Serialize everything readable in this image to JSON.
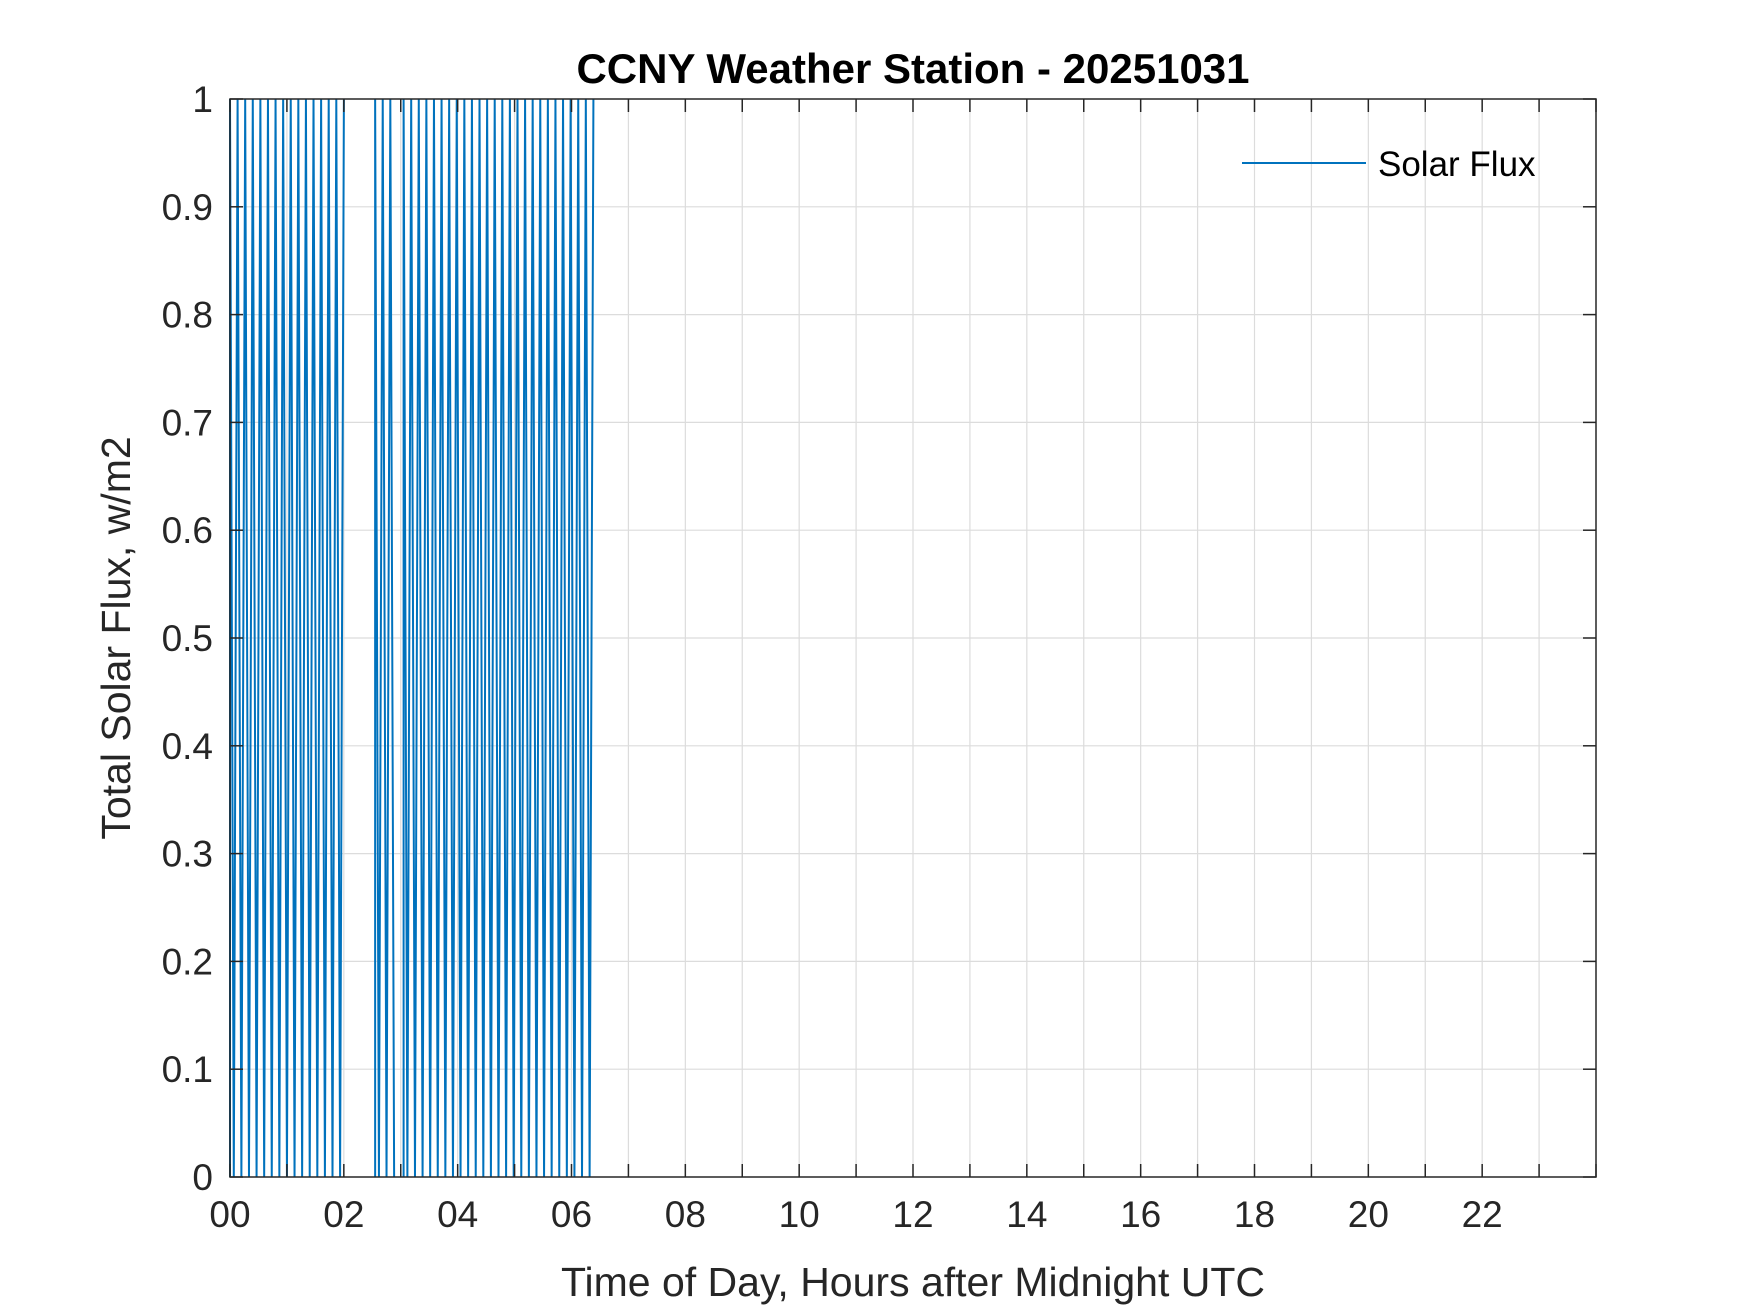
{
  "chart_data": {
    "type": "line",
    "title": "CCNY Weather Station - 20251031",
    "xlabel": "Time of Day, Hours after Midnight UTC",
    "ylabel": "Total Solar Flux, w/m2",
    "xlim": [
      0,
      24
    ],
    "ylim": [
      0,
      1
    ],
    "x_ticks": [
      0,
      2,
      4,
      6,
      8,
      10,
      12,
      14,
      16,
      18,
      20,
      22
    ],
    "x_tick_labels": [
      "00",
      "02",
      "04",
      "06",
      "08",
      "10",
      "12",
      "14",
      "16",
      "18",
      "20",
      "22"
    ],
    "y_ticks": [
      0,
      0.1,
      0.2,
      0.3,
      0.4,
      0.5,
      0.6,
      0.7,
      0.8,
      0.9,
      1
    ],
    "y_tick_labels": [
      "0",
      "0.1",
      "0.2",
      "0.3",
      "0.4",
      "0.5",
      "0.6",
      "0.7",
      "0.8",
      "0.9",
      "1"
    ],
    "grid": true,
    "legend": {
      "position": "top-right",
      "entries": [
        "Solar Flux"
      ]
    },
    "series": [
      {
        "name": "Solar Flux",
        "color": "#0072BD",
        "description": "Signal toggling between 0 and 1 at ~2-minute intervals",
        "segments": [
          {
            "x_start": 0.0,
            "x_end": 2.05,
            "step_hours": 0.0667,
            "low": 0,
            "high": 1
          },
          {
            "x_start": 2.55,
            "x_end": 2.9,
            "step_hours": 0.0667,
            "low": 0,
            "high": 1
          },
          {
            "x_start": 3.05,
            "x_end": 6.4,
            "step_hours": 0.0667,
            "low": 0,
            "high": 1
          }
        ]
      }
    ]
  }
}
